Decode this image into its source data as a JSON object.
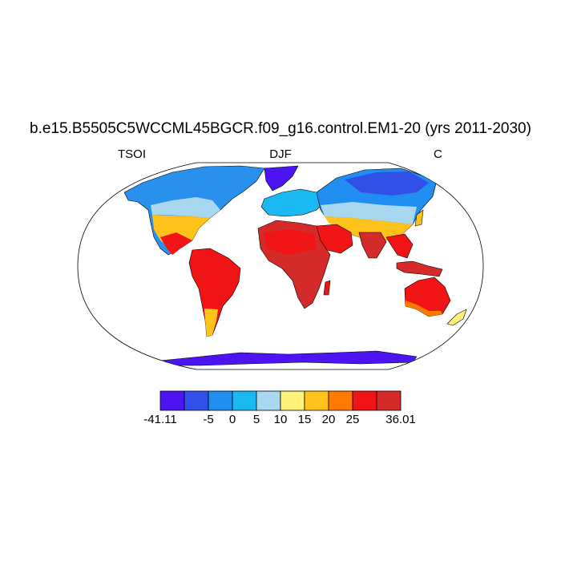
{
  "header": {
    "title": "b.e15.B5505C5WCCML45BGCR.f09_g16.control.EM1-20 (yrs 2011-2030)",
    "left_label": "TSOI",
    "center_label": "DJF",
    "right_label": "C"
  },
  "colors": {
    "ocean": "#ffffff",
    "coastline": "#000000"
  },
  "colorbar": {
    "colors": [
      "#4b14f0",
      "#3050e8",
      "#1f8ef0",
      "#1ab9f2",
      "#a8d8f0",
      "#fff27a",
      "#ffc21a",
      "#ff7a00",
      "#f01414",
      "#d42a2a"
    ],
    "labels": [
      {
        "text": "-41.11",
        "edge": 0
      },
      {
        "text": "-5",
        "edge": 2
      },
      {
        "text": "0",
        "edge": 3
      },
      {
        "text": "5",
        "edge": 4
      },
      {
        "text": "10",
        "edge": 5
      },
      {
        "text": "15",
        "edge": 6
      },
      {
        "text": "20",
        "edge": 7
      },
      {
        "text": "25",
        "edge": 8
      },
      {
        "text": "36.01",
        "edge": 10
      }
    ]
  }
}
